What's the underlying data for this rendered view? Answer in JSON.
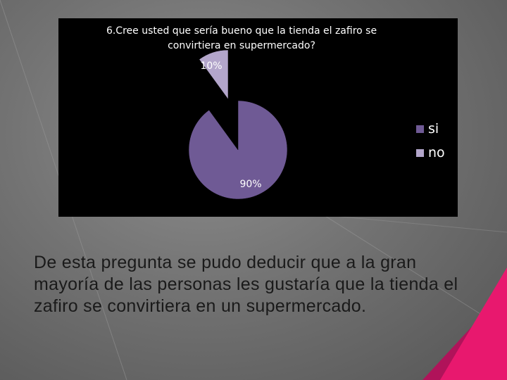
{
  "chart_data": {
    "type": "pie",
    "title_lines": [
      "6.Cree usted que sería bueno que la tienda el zafiro se",
      "convirtiera en supermercado?"
    ],
    "slices": [
      {
        "label": "si",
        "value": 90,
        "display": "90%",
        "color": "#6f5a95"
      },
      {
        "label": "no",
        "value": 10,
        "display": "10%",
        "color": "#b3a6cb"
      }
    ],
    "legend_position": "right"
  },
  "body_text": "De esta pregunta se pudo deducir que a la gran mayoría de las personas les gustaría que la tienda el zafiro se convirtiera en un supermercado.",
  "colors": {
    "chart_background": "#000000",
    "accent": "#e8186e",
    "background": "#7a7a7a"
  }
}
